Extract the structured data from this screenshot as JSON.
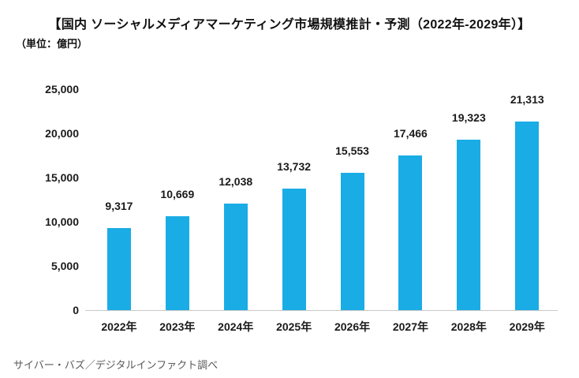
{
  "header": {
    "title": "【国内 ソーシャルメディアマーケティング市場規模推計・予測（2022年-2029年）】",
    "unit_label": "（単位：億円）"
  },
  "footer": {
    "source_note": "サイバー・バズ／デジタルインファクト調べ"
  },
  "colors": {
    "bar": "#1AACE5",
    "baseline": "#c9c9c9",
    "text": "#1a1a1a",
    "source_text": "#595959",
    "background": "#ffffff"
  },
  "chart_data": {
    "type": "bar",
    "title": "【国内 ソーシャルメディアマーケティング市場規模推計・予測（2022年-2029年）】",
    "unit": "億円",
    "categories": [
      "2022年",
      "2023年",
      "2024年",
      "2025年",
      "2026年",
      "2027年",
      "2028年",
      "2029年"
    ],
    "values": [
      9317,
      10669,
      12038,
      13732,
      15553,
      17466,
      19323,
      21313
    ],
    "value_labels": [
      "9,317",
      "10,669",
      "12,038",
      "13,732",
      "15,553",
      "17,466",
      "19,323",
      "21,313"
    ],
    "xlabel": "",
    "ylabel": "",
    "ylim": [
      0,
      25000
    ],
    "yticks": [
      {
        "value": 0,
        "label": "0"
      },
      {
        "value": 5000,
        "label": "5,000"
      },
      {
        "value": 10000,
        "label": "10,000"
      },
      {
        "value": 15000,
        "label": "15,000"
      },
      {
        "value": 20000,
        "label": "20,000"
      },
      {
        "value": 25000,
        "label": "25,000"
      }
    ],
    "grid": false,
    "legend": false,
    "bar_color": "#1AACE5",
    "source": "サイバー・バズ／デジタルインファクト調べ"
  }
}
